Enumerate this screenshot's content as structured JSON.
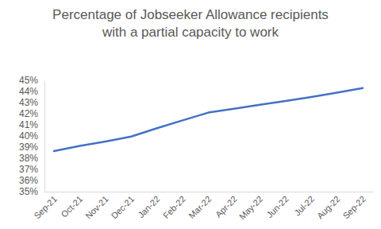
{
  "chart_data": {
    "type": "line",
    "title": "Percentage of Jobseeker Allowance recipients\nwith a partial capacity to work",
    "categories": [
      "Sep-21",
      "Oct-21",
      "Nov-21",
      "Dec-21",
      "Jan-22",
      "Feb-22",
      "Mar-22",
      "Apr-22",
      "May-22",
      "Jun-22",
      "Jul-22",
      "Aug-22",
      "Sep-22"
    ],
    "values": [
      38.65,
      39.1,
      39.5,
      39.95,
      40.7,
      41.4,
      42.1,
      42.45,
      42.8,
      43.15,
      43.5,
      43.9,
      44.3
    ],
    "color": "#4472c4",
    "ylim": [
      35,
      45
    ],
    "yticks": [
      {
        "value": 35,
        "label": "35%"
      },
      {
        "value": 36,
        "label": "36%"
      },
      {
        "value": 37,
        "label": "37%"
      },
      {
        "value": 38,
        "label": "38%"
      },
      {
        "value": 39,
        "label": "39%"
      },
      {
        "value": 40,
        "label": "40%"
      },
      {
        "value": 41,
        "label": "41%"
      },
      {
        "value": 42,
        "label": "42%"
      },
      {
        "value": 43,
        "label": "43%"
      },
      {
        "value": 44,
        "label": "44%"
      },
      {
        "value": 45,
        "label": "45%"
      }
    ],
    "grid": false
  }
}
